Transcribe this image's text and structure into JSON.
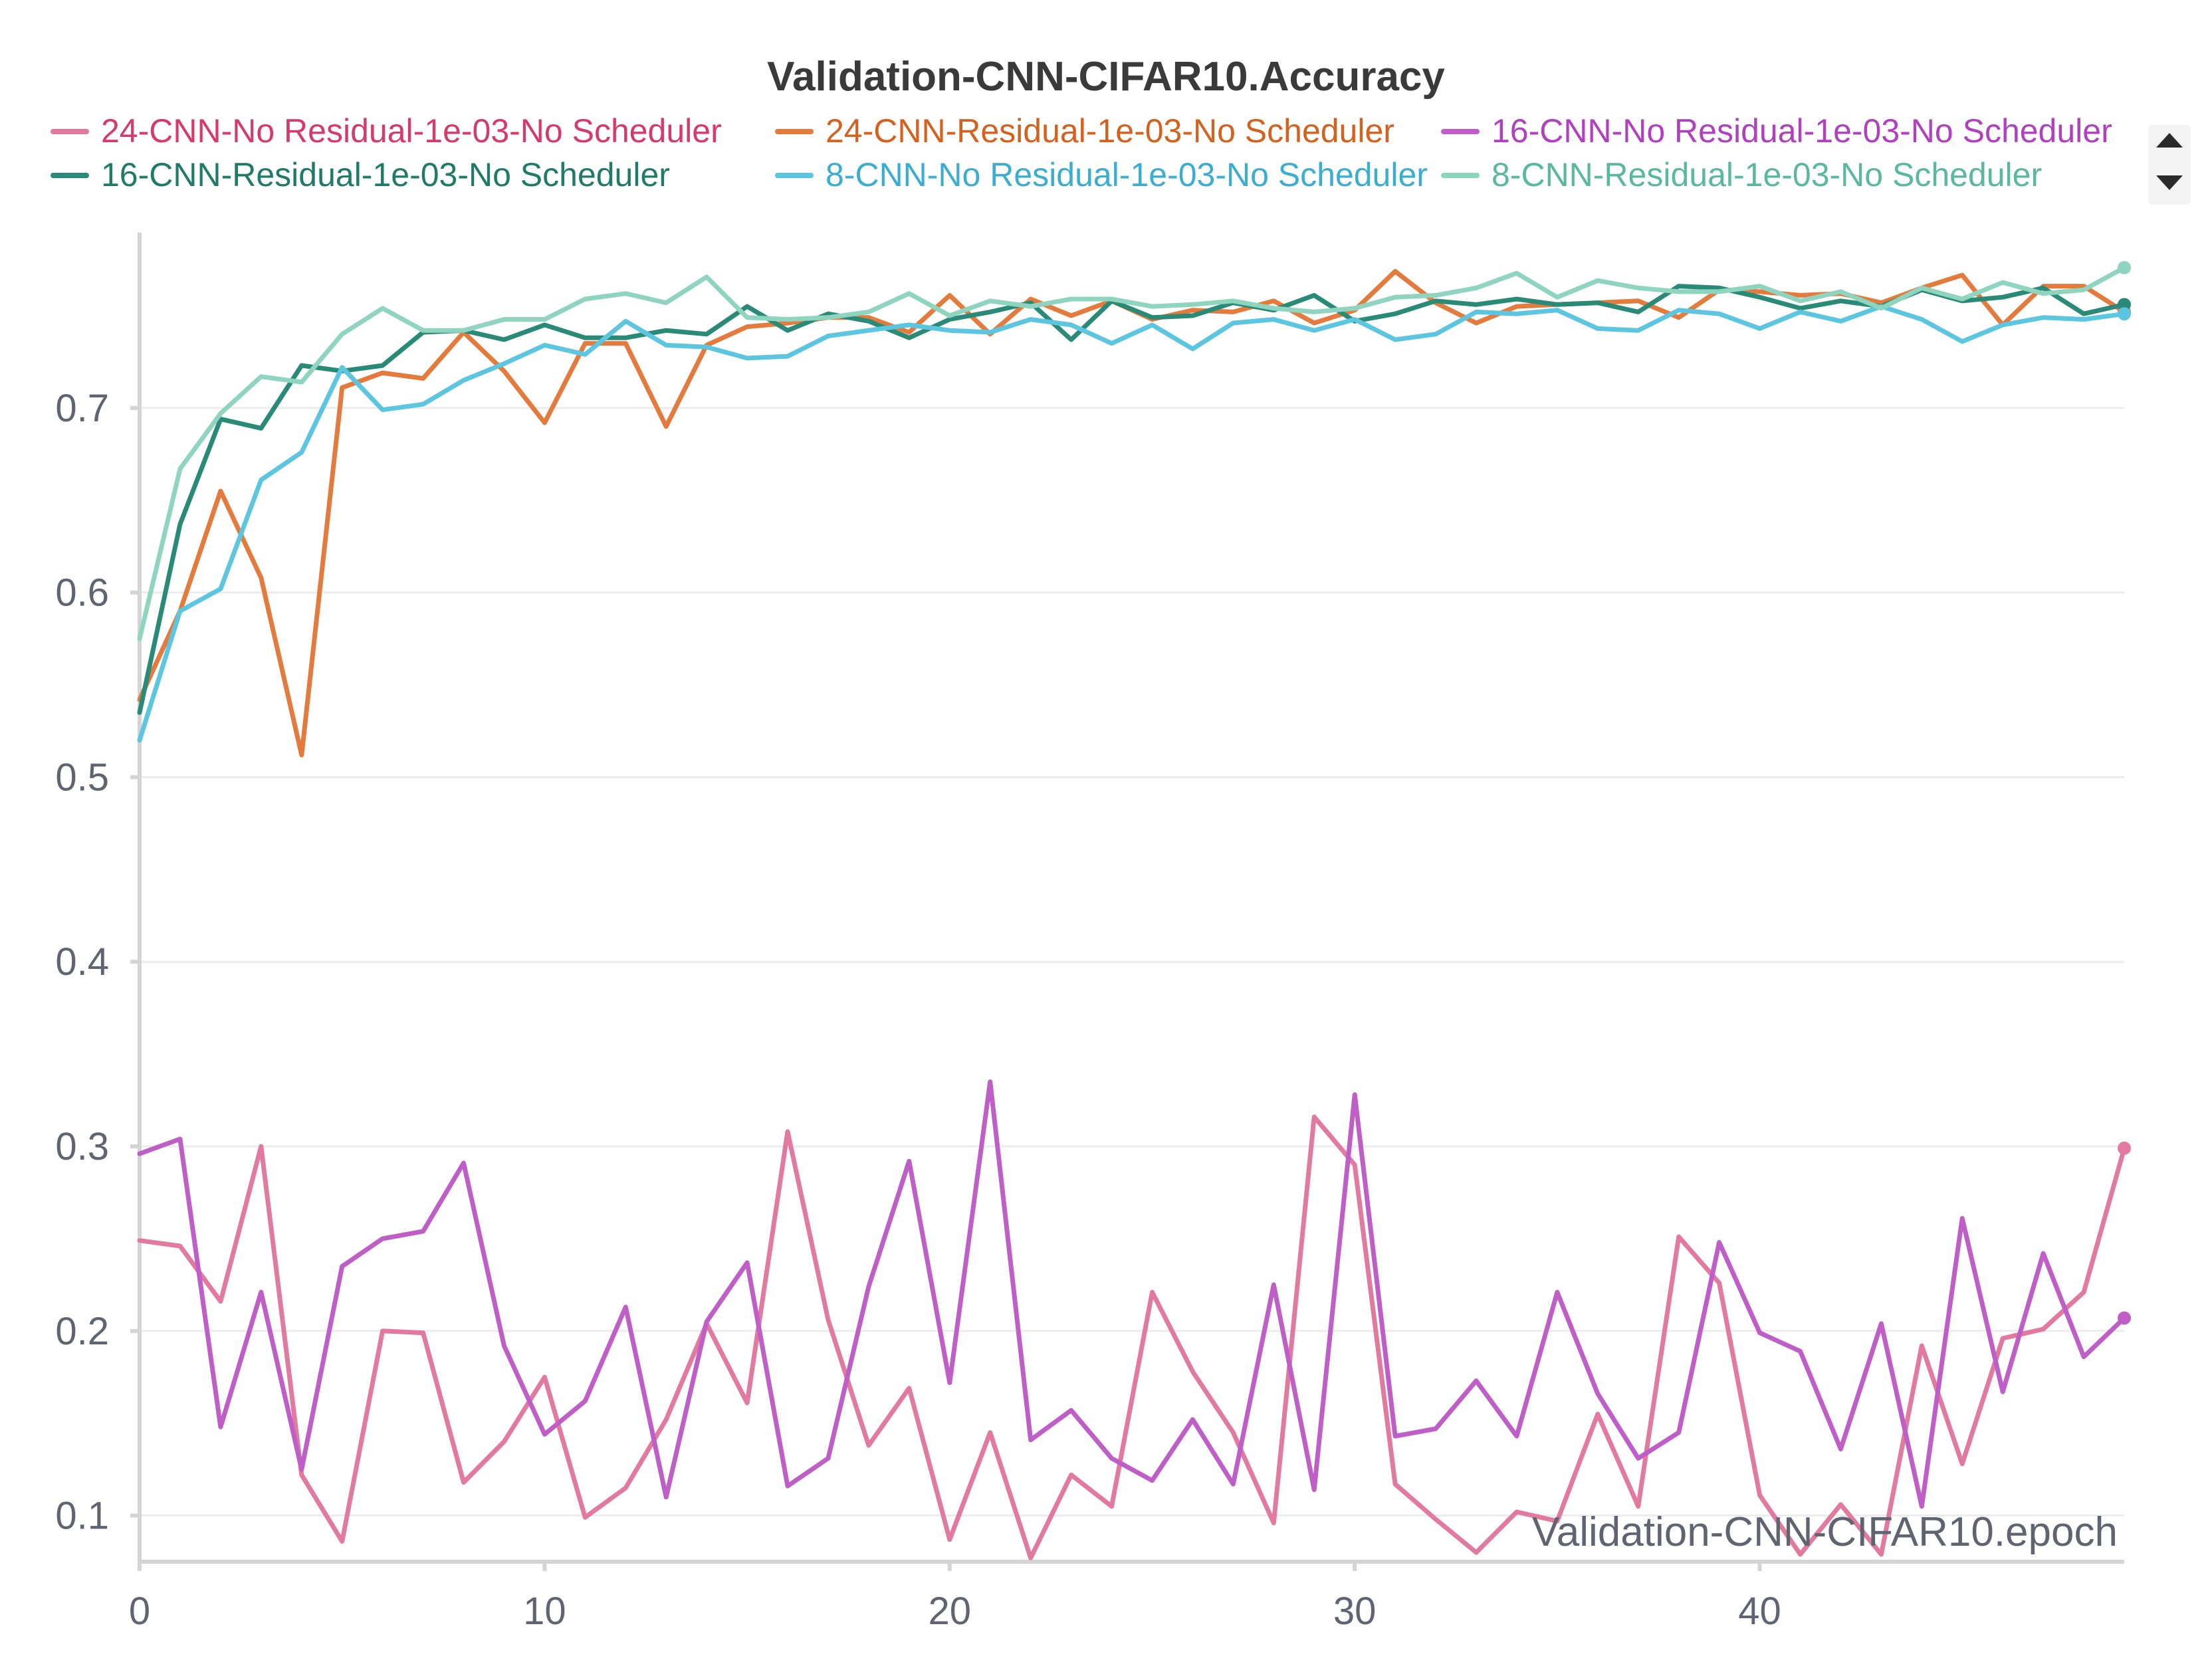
{
  "chart_data": {
    "type": "line",
    "title": "Validation-CNN-CIFAR10.Accuracy",
    "xlabel": "Validation-CNN-CIFAR10.epoch",
    "ylabel": "",
    "xlim": [
      0,
      49
    ],
    "ylim": [
      0.075,
      0.795
    ],
    "xticks": [
      0,
      10,
      20,
      30,
      40
    ],
    "yticks": [
      0.1,
      0.2,
      0.3,
      0.4,
      0.5,
      0.6,
      0.7
    ],
    "ytick_labels": [
      "0.1",
      "0.2",
      "0.3",
      "0.4",
      "0.5",
      "0.6",
      "0.7"
    ],
    "xtick_labels": [
      "0",
      "10",
      "20",
      "30",
      "40"
    ],
    "grid": true,
    "legend_position": "top",
    "x": [
      0,
      1,
      2,
      3,
      4,
      5,
      6,
      7,
      8,
      9,
      10,
      11,
      12,
      13,
      14,
      15,
      16,
      17,
      18,
      19,
      20,
      21,
      22,
      23,
      24,
      25,
      26,
      27,
      28,
      29,
      30,
      31,
      32,
      33,
      34,
      35,
      36,
      37,
      38,
      39,
      40,
      41,
      42,
      43,
      44,
      45,
      46,
      47,
      48,
      49
    ],
    "series": [
      {
        "name": "24-CNN-No Residual-1e-03-No Scheduler",
        "color": "#e27aa0",
        "text_color": "#d63a6a",
        "values": [
          0.249,
          0.246,
          0.216,
          0.3,
          0.122,
          0.086,
          0.2,
          0.199,
          0.118,
          0.14,
          0.175,
          0.099,
          0.115,
          0.152,
          0.204,
          0.161,
          0.308,
          0.206,
          0.138,
          0.169,
          0.087,
          0.145,
          0.077,
          0.122,
          0.105,
          0.221,
          0.178,
          0.145,
          0.096,
          0.316,
          0.29,
          0.117,
          0.098,
          0.08,
          0.102,
          0.097,
          0.155,
          0.105,
          0.251,
          0.226,
          0.111,
          0.079,
          0.106,
          0.079,
          0.192,
          0.128,
          0.196,
          0.201,
          0.221,
          0.299
        ]
      },
      {
        "name": "24-CNN-Residual-1e-03-No Scheduler",
        "color": "#e47a3c",
        "text_color": "#d4621e",
        "values": [
          0.542,
          0.59,
          0.655,
          0.608,
          0.512,
          0.711,
          0.719,
          0.716,
          0.741,
          0.72,
          0.692,
          0.735,
          0.735,
          0.69,
          0.734,
          0.744,
          0.746,
          0.749,
          0.749,
          0.741,
          0.761,
          0.74,
          0.759,
          0.75,
          0.758,
          0.748,
          0.753,
          0.752,
          0.758,
          0.746,
          0.753,
          0.774,
          0.757,
          0.746,
          0.755,
          0.756,
          0.757,
          0.758,
          0.749,
          0.764,
          0.763,
          0.761,
          0.762,
          0.757,
          0.765,
          0.772,
          0.745,
          0.766,
          0.766,
          0.752
        ]
      },
      {
        "name": "16-CNN-No Residual-1e-03-No Scheduler",
        "color": "#c05ec8",
        "text_color": "#b040c0",
        "values": [
          0.296,
          0.304,
          0.148,
          0.221,
          0.125,
          0.235,
          0.25,
          0.254,
          0.291,
          0.192,
          0.144,
          0.162,
          0.213,
          0.11,
          0.205,
          0.237,
          0.116,
          0.131,
          0.224,
          0.292,
          0.172,
          0.335,
          0.141,
          0.157,
          0.131,
          0.119,
          0.152,
          0.117,
          0.225,
          0.114,
          0.328,
          0.143,
          0.147,
          0.173,
          0.143,
          0.221,
          0.166,
          0.131,
          0.145,
          0.248,
          0.199,
          0.189,
          0.136,
          0.204,
          0.105,
          0.261,
          0.167,
          0.242,
          0.186,
          0.207
        ]
      },
      {
        "name": "16-CNN-Residual-1e-03-No Scheduler",
        "color": "#2a8a78",
        "text_color": "#1f7a68",
        "values": [
          0.535,
          0.637,
          0.694,
          0.689,
          0.723,
          0.72,
          0.723,
          0.741,
          0.742,
          0.737,
          0.745,
          0.738,
          0.738,
          0.742,
          0.74,
          0.755,
          0.742,
          0.751,
          0.747,
          0.738,
          0.748,
          0.752,
          0.757,
          0.737,
          0.758,
          0.749,
          0.75,
          0.757,
          0.753,
          0.761,
          0.747,
          0.751,
          0.758,
          0.756,
          0.759,
          0.756,
          0.757,
          0.752,
          0.766,
          0.765,
          0.76,
          0.754,
          0.758,
          0.755,
          0.764,
          0.758,
          0.76,
          0.765,
          0.751,
          0.756
        ]
      },
      {
        "name": "8-CNN-No Residual-1e-03-No Scheduler",
        "color": "#5cc6e0",
        "text_color": "#3aaed0",
        "values": [
          0.52,
          0.59,
          0.602,
          0.661,
          0.676,
          0.722,
          0.699,
          0.702,
          0.715,
          0.724,
          0.734,
          0.729,
          0.747,
          0.734,
          0.733,
          0.727,
          0.728,
          0.739,
          0.742,
          0.745,
          0.742,
          0.741,
          0.748,
          0.745,
          0.735,
          0.745,
          0.732,
          0.746,
          0.748,
          0.742,
          0.748,
          0.737,
          0.74,
          0.752,
          0.751,
          0.753,
          0.743,
          0.742,
          0.753,
          0.751,
          0.743,
          0.752,
          0.747,
          0.755,
          0.748,
          0.736,
          0.745,
          0.749,
          0.748,
          0.751
        ]
      },
      {
        "name": "8-CNN-Residual-1e-03-No Scheduler",
        "color": "#8fd4bf",
        "text_color": "#5ab89c",
        "values": [
          0.575,
          0.667,
          0.697,
          0.717,
          0.714,
          0.74,
          0.754,
          0.742,
          0.742,
          0.748,
          0.748,
          0.759,
          0.762,
          0.757,
          0.771,
          0.749,
          0.748,
          0.749,
          0.752,
          0.762,
          0.75,
          0.758,
          0.755,
          0.759,
          0.759,
          0.755,
          0.756,
          0.758,
          0.754,
          0.752,
          0.754,
          0.76,
          0.761,
          0.765,
          0.773,
          0.76,
          0.769,
          0.765,
          0.763,
          0.763,
          0.766,
          0.758,
          0.763,
          0.754,
          0.765,
          0.759,
          0.768,
          0.762,
          0.764,
          0.776
        ]
      }
    ]
  }
}
